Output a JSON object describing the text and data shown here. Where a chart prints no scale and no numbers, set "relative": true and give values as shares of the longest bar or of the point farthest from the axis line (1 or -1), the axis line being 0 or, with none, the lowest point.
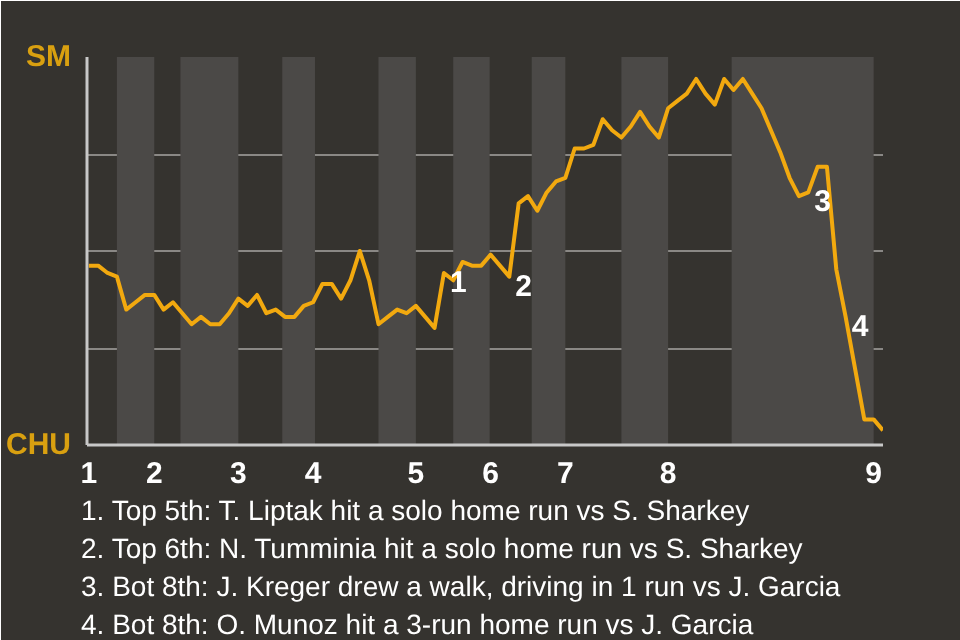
{
  "chart_data": {
    "type": "line",
    "relative": true,
    "categories": [
      "1",
      null,
      null,
      null,
      null,
      null,
      null,
      "2",
      null,
      null,
      null,
      null,
      null,
      null,
      null,
      null,
      "3",
      null,
      null,
      null,
      null,
      null,
      null,
      null,
      "4",
      null,
      null,
      null,
      null,
      null,
      null,
      null,
      null,
      null,
      null,
      "5",
      null,
      null,
      null,
      null,
      null,
      null,
      null,
      "6",
      null,
      null,
      null,
      null,
      null,
      null,
      null,
      "7",
      null,
      null,
      null,
      null,
      null,
      null,
      null,
      null,
      null,
      null,
      "8",
      null,
      null,
      null,
      null,
      null,
      null,
      null,
      null,
      null,
      null,
      null,
      null,
      null,
      null,
      null,
      null,
      null,
      null,
      null,
      null,
      null,
      "9",
      null
    ],
    "series": [
      {
        "color": "#f2a90f",
        "values": [
          0.49,
          0.49,
          0.47,
          0.46,
          0.37,
          0.39,
          0.41,
          0.41,
          0.37,
          0.39,
          0.36,
          0.33,
          0.35,
          0.33,
          0.33,
          0.36,
          0.4,
          0.38,
          0.41,
          0.36,
          0.37,
          0.35,
          0.35,
          0.38,
          0.39,
          0.44,
          0.44,
          0.4,
          0.45,
          0.53,
          0.45,
          0.33,
          0.35,
          0.37,
          0.36,
          0.38,
          0.35,
          0.32,
          0.47,
          0.45,
          0.5,
          0.49,
          0.49,
          0.52,
          0.49,
          0.46,
          0.66,
          0.68,
          0.64,
          0.69,
          0.72,
          0.73,
          0.81,
          0.81,
          0.82,
          0.89,
          0.86,
          0.84,
          0.87,
          0.91,
          0.87,
          0.84,
          0.92,
          0.94,
          0.96,
          1.0,
          0.96,
          0.93,
          1.0,
          0.97,
          1.0,
          0.96,
          0.92,
          0.86,
          0.8,
          0.73,
          0.68,
          0.69,
          0.76,
          0.76,
          0.48,
          0.35,
          0.21,
          0.07,
          0.07,
          0.04
        ]
      }
    ],
    "grid": "y",
    "annotations": [
      "SM",
      "CHU",
      "1",
      "2",
      "3",
      "4",
      "1. Top 5th: T. Liptak hit a solo home run vs S. Sharkey",
      "2. Top 6th: N. Tumminia hit a solo home run vs S. Sharkey",
      "3. Bot 8th: J. Kreger drew a walk, driving in 1 run vs J. Garcia",
      "4. Bot 8th: O. Munoz hit a 3-run home run vs J. Garcia"
    ]
  }
}
